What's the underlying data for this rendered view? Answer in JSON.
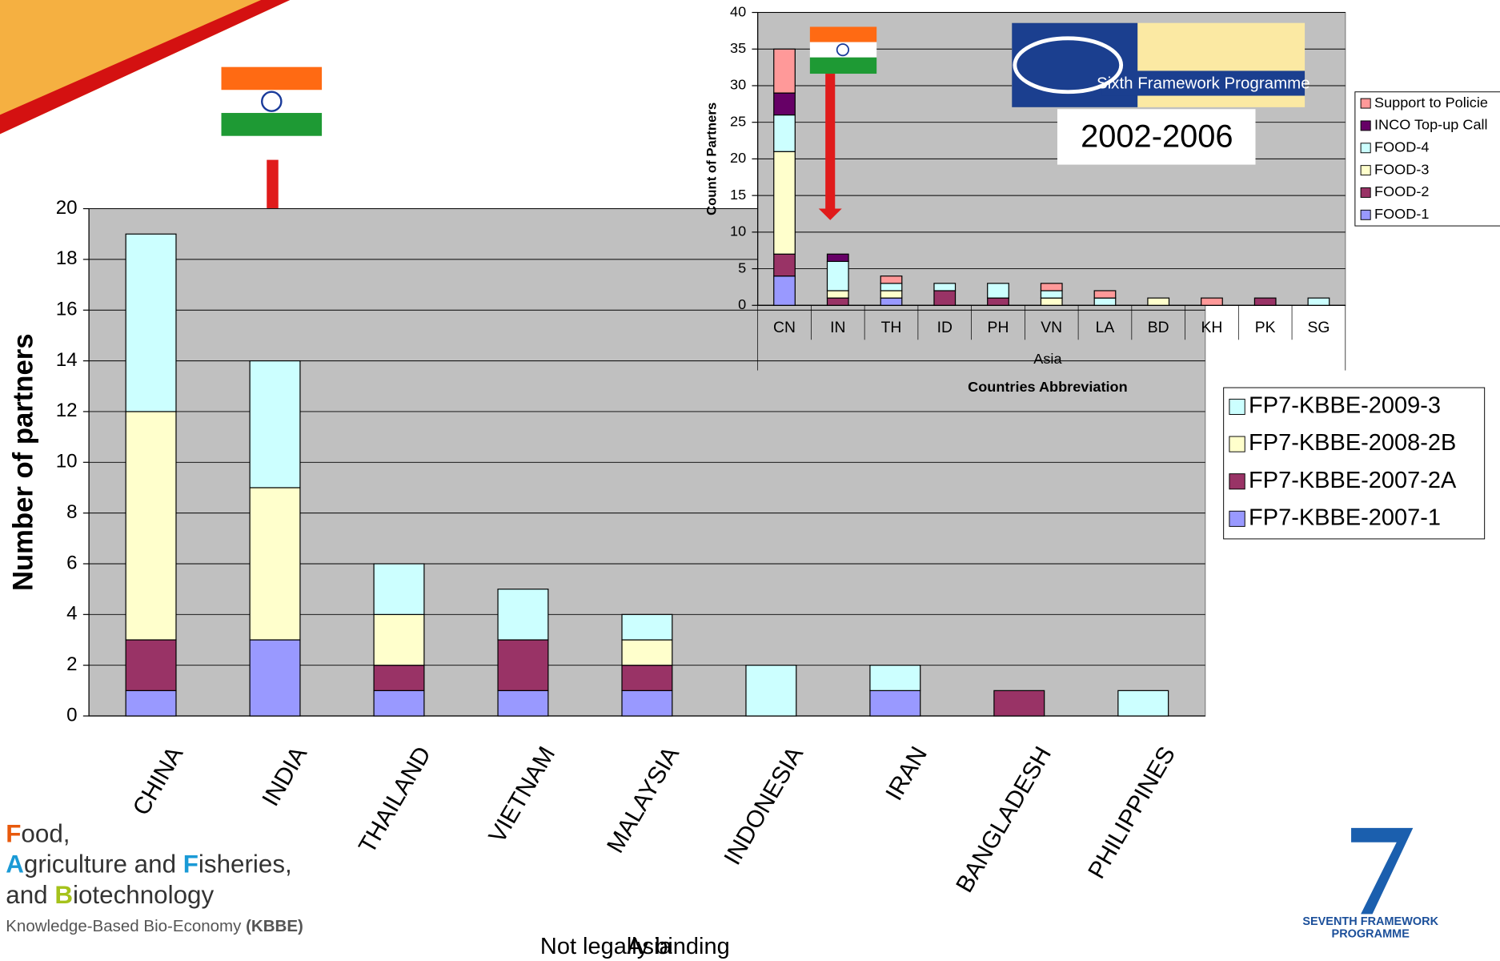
{
  "chart_data": [
    {
      "type": "stacked-bar",
      "ylabel": "Number of partners",
      "xlabel": "Asia",
      "annotation": "Not legally binding",
      "categories": [
        "CHINA",
        "INDIA",
        "THAILAND",
        "VIETNAM",
        "MALAYSIA",
        "INDONESIA",
        "IRAN",
        "BANGLADESH",
        "PHILIPPINES"
      ],
      "series": [
        {
          "name": "FP7-KBBE-2007-1",
          "color": "#9999ff",
          "values": [
            1,
            3,
            1,
            1,
            1,
            0,
            1,
            0,
            0
          ]
        },
        {
          "name": "FP7-KBBE-2007-2A",
          "color": "#993366",
          "values": [
            2,
            0,
            1,
            2,
            1,
            0,
            0,
            1,
            0
          ]
        },
        {
          "name": "FP7-KBBE-2008-2B",
          "color": "#ffffcc",
          "values": [
            9,
            6,
            2,
            0,
            1,
            0,
            0,
            0,
            0
          ]
        },
        {
          "name": "FP7-KBBE-2009-3",
          "color": "#ccffff",
          "values": [
            7,
            5,
            2,
            2,
            1,
            2,
            1,
            0,
            1
          ]
        }
      ],
      "ylim": [
        0,
        20
      ],
      "yticks": [
        0,
        2,
        4,
        6,
        8,
        10,
        12,
        14,
        16,
        18,
        20
      ],
      "grid": true,
      "legend": "right"
    },
    {
      "type": "stacked-bar",
      "ylabel": "Count of Partners",
      "group_label": "Asia",
      "xlabel": "Countries Abbreviation",
      "categories": [
        "CN",
        "IN",
        "TH",
        "ID",
        "PH",
        "VN",
        "LA",
        "BD",
        "KH",
        "PK",
        "SG"
      ],
      "series": [
        {
          "name": "FOOD-1",
          "color": "#9999ff",
          "values": [
            4,
            0,
            1,
            0,
            0,
            0,
            0,
            0,
            0,
            0,
            0
          ]
        },
        {
          "name": "FOOD-2",
          "color": "#993366",
          "values": [
            3,
            1,
            0,
            2,
            1,
            0,
            0,
            0,
            0,
            1,
            0
          ]
        },
        {
          "name": "FOOD-3",
          "color": "#ffffcc",
          "values": [
            14,
            1,
            1,
            0,
            0,
            1,
            0,
            1,
            0,
            0,
            0
          ]
        },
        {
          "name": "FOOD-4",
          "color": "#ccffff",
          "values": [
            5,
            4,
            1,
            1,
            2,
            1,
            1,
            0,
            0,
            0,
            1
          ]
        },
        {
          "name": "INCO Top-up Call",
          "color": "#660066",
          "values": [
            3,
            1,
            0,
            0,
            0,
            0,
            0,
            0,
            0,
            0,
            0
          ]
        },
        {
          "name": "Support to Policie",
          "color": "#ff9999",
          "values": [
            6,
            0,
            1,
            0,
            0,
            1,
            1,
            0,
            1,
            0,
            0
          ]
        }
      ],
      "ylim": [
        0,
        40
      ],
      "yticks": [
        0,
        5,
        10,
        15,
        20,
        25,
        30,
        35,
        40
      ],
      "grid": true,
      "legend": "right"
    }
  ],
  "fp6": {
    "name": "Sixth Framework Programme",
    "period": "2002-2006"
  },
  "logo": {
    "lines": [
      [
        "F",
        "ood,"
      ],
      [
        "A",
        "griculture and ",
        "F",
        "isheries,"
      ],
      [
        "and ",
        "B",
        "iotechnology"
      ],
      [
        "Knowledge-Based Bio-Economy ",
        "(KBBE)"
      ]
    ]
  },
  "fp7": {
    "name": [
      "SEVENTH FRAMEWORK",
      "PROGRAMME"
    ]
  }
}
